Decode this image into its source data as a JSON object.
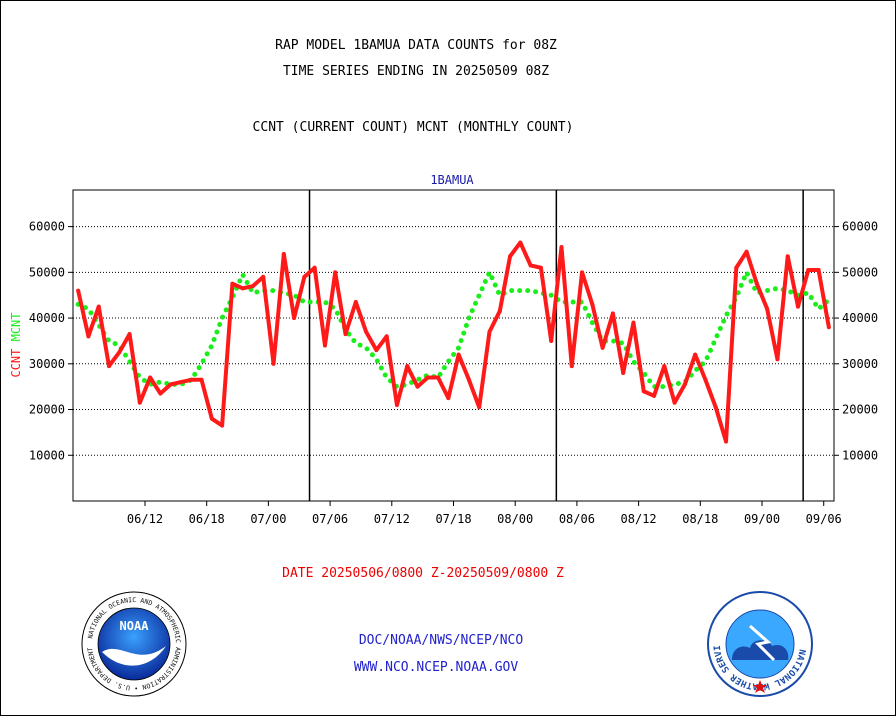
{
  "header": {
    "title1": "RAP MODEL 1BAMUA DATA COUNTS for 08Z",
    "title2": "TIME SERIES ENDING IN 20250509 08Z",
    "subtitle": "CCNT (CURRENT COUNT) MCNT (MONTHLY COUNT)"
  },
  "footer": {
    "date_range": "DATE 20250506/0800 Z-20250509/0800 Z",
    "line1": "DOC/NOAA/NWS/NCEP/NCO",
    "line2": "WWW.NCO.NCEP.NOAA.GOV"
  },
  "logos": {
    "noaa_left": {
      "text": "NOAA",
      "ring": "NATIONAL OCEANIC AND ATMOSPHERIC ADMINISTRATION",
      "ring_bottom": "U.S. DEPARTMENT OF COMMERCE"
    },
    "nws_right": {
      "ring": "NATIONAL WEATHER SERVICE"
    }
  },
  "colors": {
    "ccnt": "#ff1a1a",
    "mcnt": "#1aee1a",
    "title_blue": "#1a1aaa",
    "footer_red": "#ee0000",
    "footer_blue": "#2222cc"
  },
  "chart_data": {
    "type": "line",
    "title": "1BAMUA",
    "ylabel": "CCNT  MCNT",
    "ylim": [
      0,
      68000
    ],
    "yticks": [
      10000,
      20000,
      30000,
      40000,
      50000,
      60000
    ],
    "ytick_labels": [
      "10000",
      "20000",
      "30000",
      "40000",
      "50000",
      "60000"
    ],
    "grid": true,
    "xticks": [
      {
        "label": "06/12",
        "x": 6.5
      },
      {
        "label": "06/18",
        "x": 12.5
      },
      {
        "label": "07/00",
        "x": 18.5
      },
      {
        "label": "07/06",
        "x": 24.5
      },
      {
        "label": "07/12",
        "x": 30.5
      },
      {
        "label": "07/18",
        "x": 36.5
      },
      {
        "label": "08/00",
        "x": 42.5
      },
      {
        "label": "08/06",
        "x": 48.5
      },
      {
        "label": "08/12",
        "x": 54.5
      },
      {
        "label": "08/18",
        "x": 60.5
      },
      {
        "label": "09/00",
        "x": 66.5
      },
      {
        "label": "09/06",
        "x": 72.5
      }
    ],
    "day_boundaries": [
      22.5,
      46.5,
      70.5
    ],
    "series": [
      {
        "name": "CCNT",
        "style": "solid",
        "values": [
          46000,
          36000,
          42500,
          29500,
          32500,
          36500,
          21500,
          27000,
          23500,
          25500,
          26000,
          26500,
          26500,
          18000,
          16500,
          47500,
          46500,
          47000,
          49000,
          30000,
          54000,
          40000,
          49000,
          51000,
          34000,
          50000,
          36500,
          43500,
          37000,
          33000,
          36000,
          21000,
          29500,
          25000,
          27000,
          27000,
          22500,
          32000,
          26500,
          20500,
          37000,
          41500,
          53500,
          56500,
          51500,
          51000,
          35000,
          55500,
          29500,
          50000,
          43000,
          33500,
          41000,
          28000,
          39000,
          24000,
          23000,
          29500,
          21500,
          25500,
          32000,
          26500,
          20500,
          13000,
          51000,
          54500,
          47500,
          42000,
          31000,
          53500,
          42500,
          50500,
          50500,
          38000
        ]
      },
      {
        "name": "MCNT",
        "style": "dotted",
        "values": [
          43000,
          42000,
          38500,
          35000,
          34000,
          30500,
          27000,
          25500,
          26000,
          25500,
          25500,
          26500,
          30000,
          34000,
          40000,
          44500,
          49500,
          45500,
          46000,
          46000,
          45500,
          45000,
          43500,
          43500,
          43500,
          42000,
          37500,
          34500,
          33500,
          31000,
          27000,
          25000,
          25500,
          26500,
          27500,
          27000,
          30500,
          33500,
          40000,
          45000,
          50000,
          45000,
          46000,
          46000,
          46000,
          45500,
          45000,
          43500,
          43500,
          43500,
          39000,
          35000,
          35000,
          34500,
          30500,
          28000,
          25000,
          25000,
          25500,
          26000,
          28500,
          30500,
          35500,
          40500,
          44500,
          50000,
          45500,
          46000,
          46500,
          46000,
          45000,
          45500,
          42000,
          44000
        ]
      }
    ]
  }
}
